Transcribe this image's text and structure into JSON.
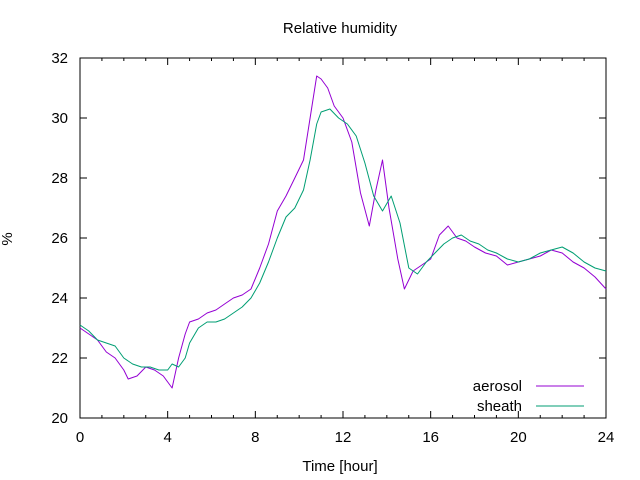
{
  "chart_data": {
    "type": "line",
    "title": "Relative humidity",
    "xlabel": "Time [hour]",
    "ylabel": "%",
    "xlim": [
      0,
      24
    ],
    "ylim": [
      20,
      32
    ],
    "xticks": [
      0,
      4,
      8,
      12,
      16,
      20,
      24
    ],
    "yticks": [
      20,
      22,
      24,
      26,
      28,
      30,
      32
    ],
    "grid": false,
    "legend_position": "bottom-right",
    "series": [
      {
        "name": "aerosol",
        "color": "#9400d3",
        "x": [
          0,
          0.4,
          0.8,
          1.2,
          1.6,
          2.0,
          2.2,
          2.6,
          3.0,
          3.4,
          3.8,
          4.0,
          4.2,
          4.5,
          4.8,
          5.0,
          5.4,
          5.8,
          6.2,
          6.6,
          7.0,
          7.4,
          7.8,
          8.2,
          8.6,
          9.0,
          9.4,
          9.8,
          10.2,
          10.5,
          10.8,
          11.0,
          11.3,
          11.6,
          12.0,
          12.4,
          12.8,
          13.2,
          13.5,
          13.8,
          14.1,
          14.5,
          14.8,
          15.2,
          15.6,
          16.0,
          16.4,
          16.8,
          17.2,
          17.6,
          18.0,
          18.5,
          19.0,
          19.5,
          20.0,
          20.5,
          21.0,
          21.5,
          22.0,
          22.5,
          23.0,
          23.5,
          24.0
        ],
        "values": [
          23.0,
          22.8,
          22.6,
          22.2,
          22.0,
          21.6,
          21.3,
          21.4,
          21.7,
          21.6,
          21.4,
          21.2,
          21.0,
          22.0,
          22.8,
          23.2,
          23.3,
          23.5,
          23.6,
          23.8,
          24.0,
          24.1,
          24.3,
          25.0,
          25.8,
          26.9,
          27.4,
          28.0,
          28.6,
          30.0,
          31.4,
          31.3,
          31.0,
          30.4,
          30.0,
          29.2,
          27.5,
          26.4,
          27.6,
          28.6,
          27.0,
          25.3,
          24.3,
          24.9,
          25.1,
          25.3,
          26.1,
          26.4,
          26.0,
          25.9,
          25.7,
          25.5,
          25.4,
          25.1,
          25.2,
          25.3,
          25.4,
          25.6,
          25.5,
          25.2,
          25.0,
          24.7,
          24.3
        ]
      },
      {
        "name": "sheath",
        "color": "#009e73",
        "x": [
          0,
          0.4,
          0.8,
          1.2,
          1.6,
          2.0,
          2.4,
          2.8,
          3.2,
          3.6,
          4.0,
          4.2,
          4.5,
          4.8,
          5.0,
          5.4,
          5.8,
          6.2,
          6.6,
          7.0,
          7.4,
          7.8,
          8.2,
          8.6,
          9.0,
          9.4,
          9.8,
          10.2,
          10.5,
          10.8,
          11.0,
          11.4,
          11.8,
          12.2,
          12.6,
          13.0,
          13.4,
          13.8,
          14.2,
          14.6,
          15.0,
          15.4,
          15.8,
          16.2,
          16.6,
          17.0,
          17.4,
          17.8,
          18.2,
          18.6,
          19.0,
          19.5,
          20.0,
          20.5,
          21.0,
          21.5,
          22.0,
          22.5,
          23.0,
          23.5,
          24.0
        ],
        "values": [
          23.1,
          22.9,
          22.6,
          22.5,
          22.4,
          22.0,
          21.8,
          21.7,
          21.7,
          21.6,
          21.6,
          21.8,
          21.7,
          22.0,
          22.5,
          23.0,
          23.2,
          23.2,
          23.3,
          23.5,
          23.7,
          24.0,
          24.5,
          25.2,
          26.0,
          26.7,
          27.0,
          27.6,
          28.6,
          29.8,
          30.2,
          30.3,
          30.0,
          29.8,
          29.4,
          28.5,
          27.4,
          26.9,
          27.4,
          26.5,
          25.0,
          24.8,
          25.2,
          25.5,
          25.8,
          26.0,
          26.1,
          25.9,
          25.8,
          25.6,
          25.5,
          25.3,
          25.2,
          25.3,
          25.5,
          25.6,
          25.7,
          25.5,
          25.2,
          25.0,
          24.9
        ]
      }
    ]
  }
}
